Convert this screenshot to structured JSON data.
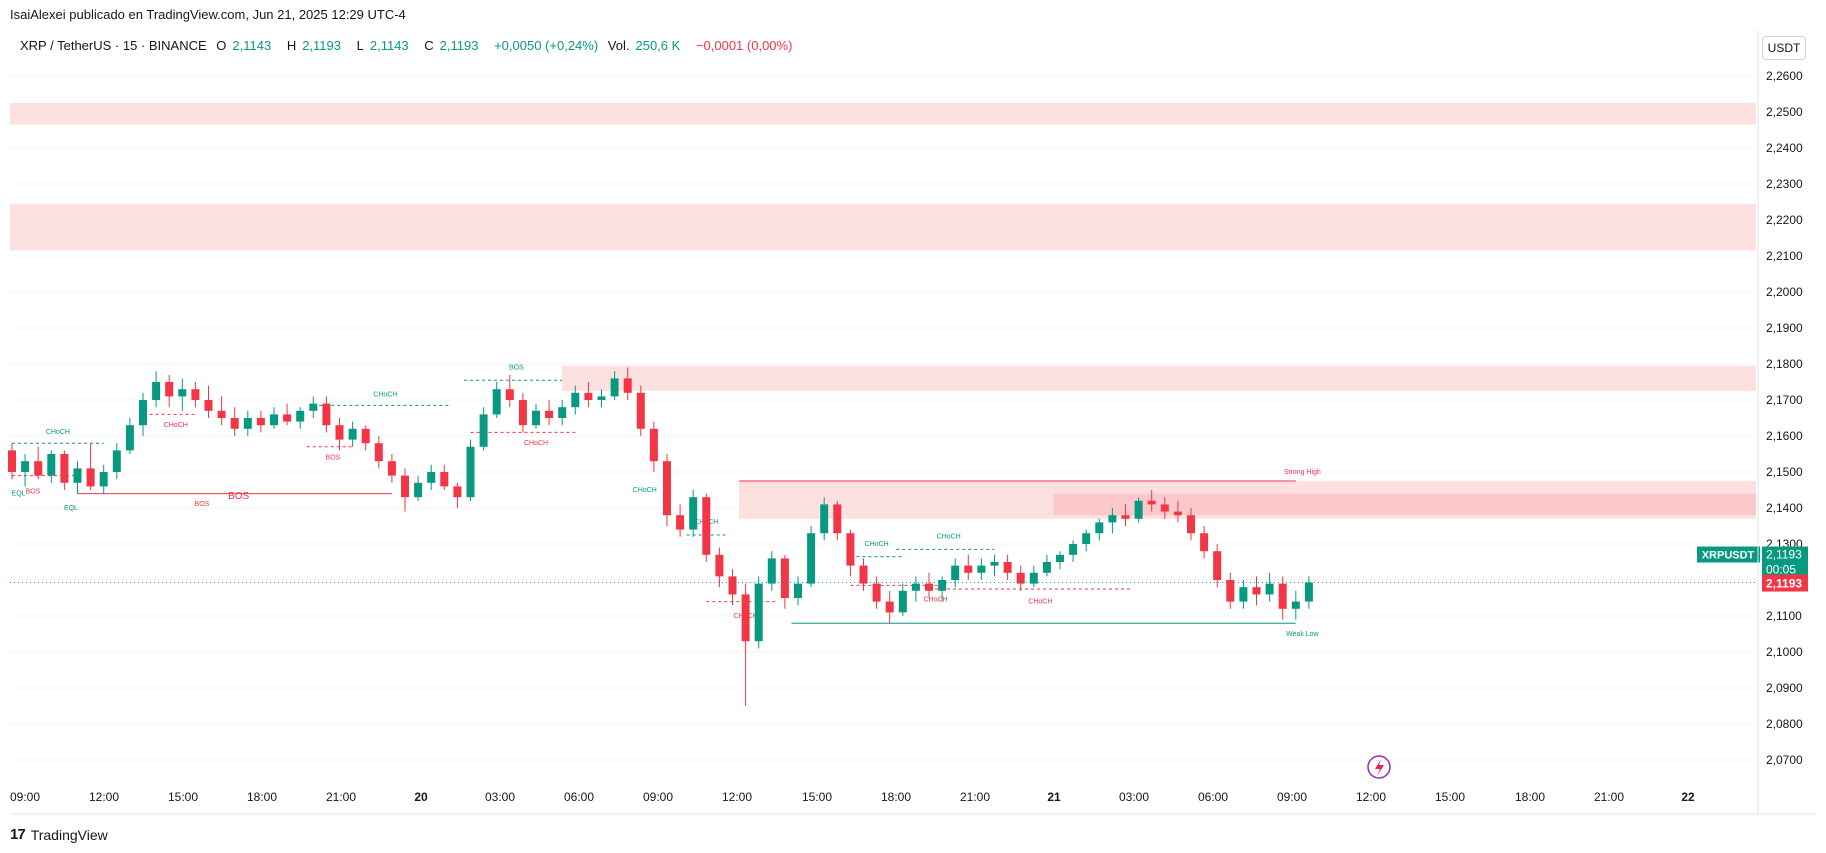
{
  "header": {
    "published_by": "IsaiAlexei publicado en TradingView.com, Jun 21, 2025 12:29 UTC-4"
  },
  "legend": {
    "symbol": "XRP / TetherUS · 15 · BINANCE",
    "open_label": "O",
    "open": "2,1143",
    "high_label": "H",
    "high": "2,1193",
    "low_label": "L",
    "low": "2,1143",
    "close_label": "C",
    "close": "2,1193",
    "change": "+0,0050 (+0,24%)",
    "vol_label": "Vol.",
    "vol": "250,6 K",
    "vol_change": "−0,0001 (0,00%)"
  },
  "currency_button": "USDT",
  "price_tags": {
    "symbol_tag": "XRPUSDT",
    "last_price": "2,1193",
    "countdown": "00:05",
    "price_line_value": "2,1193"
  },
  "footer": {
    "brand": "TradingView",
    "logo_glyph": "17"
  },
  "colors": {
    "bull": "#089981",
    "bear": "#f23645",
    "zone": "#fde0e0",
    "zone_dark": "#fbc9cb",
    "grid": "#f0f3fa",
    "axis_text": "#131722"
  },
  "chart_data": {
    "type": "candlestick",
    "y_axis": {
      "min": 2.065,
      "max": 2.265,
      "ticks": [
        "2,2600",
        "2,2500",
        "2,2400",
        "2,2300",
        "2,2200",
        "2,2100",
        "2,2000",
        "2,1900",
        "2,1800",
        "2,1700",
        "2,1600",
        "2,1500",
        "2,1400",
        "2,1300",
        "2,1200",
        "2,1100",
        "2,1000",
        "2,0900",
        "2,0800",
        "2,0700"
      ],
      "tick_values": [
        2.26,
        2.25,
        2.24,
        2.23,
        2.22,
        2.21,
        2.2,
        2.19,
        2.18,
        2.17,
        2.16,
        2.15,
        2.14,
        2.13,
        2.12,
        2.11,
        2.1,
        2.09,
        2.08,
        2.07
      ]
    },
    "x_axis": {
      "ticks": [
        "09:00",
        "12:00",
        "15:00",
        "18:00",
        "21:00",
        "20",
        "03:00",
        "06:00",
        "09:00",
        "12:00",
        "15:00",
        "18:00",
        "21:00",
        "21",
        "03:00",
        "06:00",
        "09:00",
        "12:00",
        "15:00",
        "18:00",
        "21:00",
        "22"
      ],
      "bold_ticks": [
        "20",
        "21",
        "22"
      ]
    },
    "zones": [
      {
        "top": 2.2525,
        "bottom": 2.2465,
        "label": ""
      },
      {
        "top": 2.2245,
        "bottom": 2.2115,
        "label": ""
      },
      {
        "top": 2.1795,
        "bottom": 2.1725,
        "label": ""
      },
      {
        "top": 2.1475,
        "bottom": 2.137,
        "label": ""
      }
    ],
    "levels": [
      {
        "label": "BOS",
        "price": 2.144,
        "color": "bear",
        "style": "solid"
      },
      {
        "label": "Strong High",
        "price": 2.1475,
        "color": "bear",
        "style": "solid"
      },
      {
        "label": "Weak Low",
        "price": 2.108,
        "color": "bull",
        "style": "solid"
      }
    ],
    "structure_labels": [
      "CHoCH",
      "EQL",
      "BOS",
      "EQL",
      "CHoCH",
      "CHoCH",
      "BOS",
      "BOS",
      "CHoCH",
      "CHoCH",
      "CHoCH",
      "CHoCH",
      "CHoCH",
      "CHoCH",
      "CHoCH",
      "CHoCH",
      "BOS"
    ],
    "last_price": 2.1193,
    "candles": [
      {
        "t": "09:00",
        "o": 2.156,
        "h": 2.158,
        "l": 2.148,
        "c": 2.15
      },
      {
        "t": "",
        "o": 2.15,
        "h": 2.155,
        "l": 2.146,
        "c": 2.153
      },
      {
        "t": "",
        "o": 2.153,
        "h": 2.157,
        "l": 2.148,
        "c": 2.149
      },
      {
        "t": "",
        "o": 2.149,
        "h": 2.156,
        "l": 2.147,
        "c": 2.155
      },
      {
        "t": "",
        "o": 2.155,
        "h": 2.156,
        "l": 2.145,
        "c": 2.147
      },
      {
        "t": "12:00",
        "o": 2.147,
        "h": 2.153,
        "l": 2.144,
        "c": 2.151
      },
      {
        "t": "",
        "o": 2.151,
        "h": 2.158,
        "l": 2.145,
        "c": 2.146
      },
      {
        "t": "",
        "o": 2.146,
        "h": 2.152,
        "l": 2.144,
        "c": 2.15
      },
      {
        "t": "",
        "o": 2.15,
        "h": 2.158,
        "l": 2.148,
        "c": 2.156
      },
      {
        "t": "",
        "o": 2.156,
        "h": 2.165,
        "l": 2.155,
        "c": 2.163
      },
      {
        "t": "",
        "o": 2.163,
        "h": 2.172,
        "l": 2.16,
        "c": 2.17
      },
      {
        "t": "15:00",
        "o": 2.17,
        "h": 2.178,
        "l": 2.168,
        "c": 2.175
      },
      {
        "t": "",
        "o": 2.175,
        "h": 2.177,
        "l": 2.168,
        "c": 2.171
      },
      {
        "t": "",
        "o": 2.171,
        "h": 2.176,
        "l": 2.167,
        "c": 2.173
      },
      {
        "t": "",
        "o": 2.173,
        "h": 2.175,
        "l": 2.168,
        "c": 2.17
      },
      {
        "t": "",
        "o": 2.17,
        "h": 2.174,
        "l": 2.165,
        "c": 2.167
      },
      {
        "t": "",
        "o": 2.167,
        "h": 2.171,
        "l": 2.163,
        "c": 2.165
      },
      {
        "t": "18:00",
        "o": 2.165,
        "h": 2.168,
        "l": 2.16,
        "c": 2.162
      },
      {
        "t": "",
        "o": 2.162,
        "h": 2.167,
        "l": 2.16,
        "c": 2.165
      },
      {
        "t": "",
        "o": 2.165,
        "h": 2.167,
        "l": 2.161,
        "c": 2.163
      },
      {
        "t": "",
        "o": 2.163,
        "h": 2.168,
        "l": 2.162,
        "c": 2.166
      },
      {
        "t": "",
        "o": 2.166,
        "h": 2.169,
        "l": 2.163,
        "c": 2.164
      },
      {
        "t": "21:00",
        "o": 2.164,
        "h": 2.168,
        "l": 2.162,
        "c": 2.167
      },
      {
        "t": "",
        "o": 2.167,
        "h": 2.171,
        "l": 2.165,
        "c": 2.169
      },
      {
        "t": "",
        "o": 2.169,
        "h": 2.171,
        "l": 2.161,
        "c": 2.163
      },
      {
        "t": "",
        "o": 2.163,
        "h": 2.165,
        "l": 2.156,
        "c": 2.159
      },
      {
        "t": "",
        "o": 2.159,
        "h": 2.164,
        "l": 2.157,
        "c": 2.162
      },
      {
        "t": "",
        "o": 2.162,
        "h": 2.163,
        "l": 2.156,
        "c": 2.158
      },
      {
        "t": "20",
        "o": 2.158,
        "h": 2.16,
        "l": 2.151,
        "c": 2.153
      },
      {
        "t": "",
        "o": 2.153,
        "h": 2.155,
        "l": 2.147,
        "c": 2.149
      },
      {
        "t": "",
        "o": 2.149,
        "h": 2.151,
        "l": 2.139,
        "c": 2.143
      },
      {
        "t": "",
        "o": 2.143,
        "h": 2.149,
        "l": 2.142,
        "c": 2.147
      },
      {
        "t": "",
        "o": 2.147,
        "h": 2.152,
        "l": 2.145,
        "c": 2.15
      },
      {
        "t": "",
        "o": 2.15,
        "h": 2.152,
        "l": 2.145,
        "c": 2.146
      },
      {
        "t": "03:00",
        "o": 2.146,
        "h": 2.147,
        "l": 2.14,
        "c": 2.143
      },
      {
        "t": "",
        "o": 2.143,
        "h": 2.159,
        "l": 2.142,
        "c": 2.157
      },
      {
        "t": "",
        "o": 2.157,
        "h": 2.168,
        "l": 2.156,
        "c": 2.166
      },
      {
        "t": "",
        "o": 2.166,
        "h": 2.175,
        "l": 2.165,
        "c": 2.173
      },
      {
        "t": "",
        "o": 2.173,
        "h": 2.177,
        "l": 2.168,
        "c": 2.17
      },
      {
        "t": "",
        "o": 2.17,
        "h": 2.172,
        "l": 2.161,
        "c": 2.163
      },
      {
        "t": "06:00",
        "o": 2.163,
        "h": 2.169,
        "l": 2.162,
        "c": 2.167
      },
      {
        "t": "",
        "o": 2.167,
        "h": 2.17,
        "l": 2.163,
        "c": 2.165
      },
      {
        "t": "",
        "o": 2.165,
        "h": 2.17,
        "l": 2.163,
        "c": 2.168
      },
      {
        "t": "",
        "o": 2.168,
        "h": 2.174,
        "l": 2.166,
        "c": 2.172
      },
      {
        "t": "",
        "o": 2.172,
        "h": 2.175,
        "l": 2.168,
        "c": 2.17
      },
      {
        "t": "",
        "o": 2.17,
        "h": 2.173,
        "l": 2.168,
        "c": 2.171
      },
      {
        "t": "09:00",
        "o": 2.171,
        "h": 2.178,
        "l": 2.17,
        "c": 2.176
      },
      {
        "t": "",
        "o": 2.176,
        "h": 2.179,
        "l": 2.17,
        "c": 2.172
      },
      {
        "t": "",
        "o": 2.172,
        "h": 2.174,
        "l": 2.16,
        "c": 2.162
      },
      {
        "t": "",
        "o": 2.162,
        "h": 2.164,
        "l": 2.15,
        "c": 2.153
      },
      {
        "t": "",
        "o": 2.153,
        "h": 2.155,
        "l": 2.135,
        "c": 2.138
      },
      {
        "t": "",
        "o": 2.138,
        "h": 2.141,
        "l": 2.132,
        "c": 2.134
      },
      {
        "t": "12:00",
        "o": 2.134,
        "h": 2.145,
        "l": 2.132,
        "c": 2.143
      },
      {
        "t": "",
        "o": 2.143,
        "h": 2.144,
        "l": 2.125,
        "c": 2.127
      },
      {
        "t": "",
        "o": 2.127,
        "h": 2.129,
        "l": 2.118,
        "c": 2.121
      },
      {
        "t": "",
        "o": 2.121,
        "h": 2.123,
        "l": 2.113,
        "c": 2.116
      },
      {
        "t": "",
        "o": 2.116,
        "h": 2.119,
        "l": 2.085,
        "c": 2.103
      },
      {
        "t": "",
        "o": 2.103,
        "h": 2.121,
        "l": 2.101,
        "c": 2.119
      },
      {
        "t": "15:00",
        "o": 2.119,
        "h": 2.128,
        "l": 2.117,
        "c": 2.126
      },
      {
        "t": "",
        "o": 2.126,
        "h": 2.127,
        "l": 2.112,
        "c": 2.115
      },
      {
        "t": "",
        "o": 2.115,
        "h": 2.121,
        "l": 2.113,
        "c": 2.119
      },
      {
        "t": "",
        "o": 2.119,
        "h": 2.135,
        "l": 2.118,
        "c": 2.133
      },
      {
        "t": "",
        "o": 2.133,
        "h": 2.143,
        "l": 2.131,
        "c": 2.141
      },
      {
        "t": "",
        "o": 2.141,
        "h": 2.142,
        "l": 2.131,
        "c": 2.133
      },
      {
        "t": "18:00",
        "o": 2.133,
        "h": 2.134,
        "l": 2.121,
        "c": 2.124
      },
      {
        "t": "",
        "o": 2.124,
        "h": 2.126,
        "l": 2.117,
        "c": 2.119
      },
      {
        "t": "",
        "o": 2.119,
        "h": 2.121,
        "l": 2.112,
        "c": 2.114
      },
      {
        "t": "",
        "o": 2.114,
        "h": 2.117,
        "l": 2.108,
        "c": 2.111
      },
      {
        "t": "",
        "o": 2.111,
        "h": 2.119,
        "l": 2.11,
        "c": 2.117
      },
      {
        "t": "",
        "o": 2.117,
        "h": 2.121,
        "l": 2.114,
        "c": 2.119
      },
      {
        "t": "21:00",
        "o": 2.119,
        "h": 2.122,
        "l": 2.115,
        "c": 2.117
      },
      {
        "t": "",
        "o": 2.117,
        "h": 2.121,
        "l": 2.114,
        "c": 2.12
      },
      {
        "t": "",
        "o": 2.12,
        "h": 2.126,
        "l": 2.118,
        "c": 2.124
      },
      {
        "t": "",
        "o": 2.124,
        "h": 2.127,
        "l": 2.12,
        "c": 2.122
      },
      {
        "t": "",
        "o": 2.122,
        "h": 2.126,
        "l": 2.12,
        "c": 2.124
      },
      {
        "t": "",
        "o": 2.124,
        "h": 2.127,
        "l": 2.121,
        "c": 2.125
      },
      {
        "t": "21",
        "o": 2.125,
        "h": 2.127,
        "l": 2.12,
        "c": 2.122
      },
      {
        "t": "",
        "o": 2.122,
        "h": 2.124,
        "l": 2.117,
        "c": 2.119
      },
      {
        "t": "",
        "o": 2.119,
        "h": 2.124,
        "l": 2.118,
        "c": 2.122
      },
      {
        "t": "",
        "o": 2.122,
        "h": 2.127,
        "l": 2.121,
        "c": 2.125
      },
      {
        "t": "",
        "o": 2.125,
        "h": 2.128,
        "l": 2.123,
        "c": 2.127
      },
      {
        "t": "",
        "o": 2.127,
        "h": 2.131,
        "l": 2.125,
        "c": 2.13
      },
      {
        "t": "03:00",
        "o": 2.13,
        "h": 2.134,
        "l": 2.128,
        "c": 2.133
      },
      {
        "t": "",
        "o": 2.133,
        "h": 2.137,
        "l": 2.131,
        "c": 2.136
      },
      {
        "t": "",
        "o": 2.136,
        "h": 2.14,
        "l": 2.133,
        "c": 2.138
      },
      {
        "t": "",
        "o": 2.138,
        "h": 2.141,
        "l": 2.135,
        "c": 2.137
      },
      {
        "t": "",
        "o": 2.137,
        "h": 2.143,
        "l": 2.136,
        "c": 2.142
      },
      {
        "t": "",
        "o": 2.142,
        "h": 2.145,
        "l": 2.139,
        "c": 2.141
      },
      {
        "t": "06:00",
        "o": 2.141,
        "h": 2.143,
        "l": 2.137,
        "c": 2.139
      },
      {
        "t": "",
        "o": 2.139,
        "h": 2.142,
        "l": 2.136,
        "c": 2.138
      },
      {
        "t": "",
        "o": 2.138,
        "h": 2.14,
        "l": 2.131,
        "c": 2.133
      },
      {
        "t": "",
        "o": 2.133,
        "h": 2.135,
        "l": 2.126,
        "c": 2.128
      },
      {
        "t": "",
        "o": 2.128,
        "h": 2.13,
        "l": 2.118,
        "c": 2.12
      },
      {
        "t": "",
        "o": 2.12,
        "h": 2.122,
        "l": 2.112,
        "c": 2.114
      },
      {
        "t": "09:00",
        "o": 2.114,
        "h": 2.12,
        "l": 2.112,
        "c": 2.118
      },
      {
        "t": "",
        "o": 2.118,
        "h": 2.121,
        "l": 2.113,
        "c": 2.116
      },
      {
        "t": "",
        "o": 2.116,
        "h": 2.122,
        "l": 2.114,
        "c": 2.119
      },
      {
        "t": "",
        "o": 2.119,
        "h": 2.121,
        "l": 2.109,
        "c": 2.112
      },
      {
        "t": "",
        "o": 2.112,
        "h": 2.117,
        "l": 2.109,
        "c": 2.114
      },
      {
        "t": "12:00",
        "o": 2.114,
        "h": 2.121,
        "l": 2.112,
        "c": 2.1193
      }
    ]
  }
}
